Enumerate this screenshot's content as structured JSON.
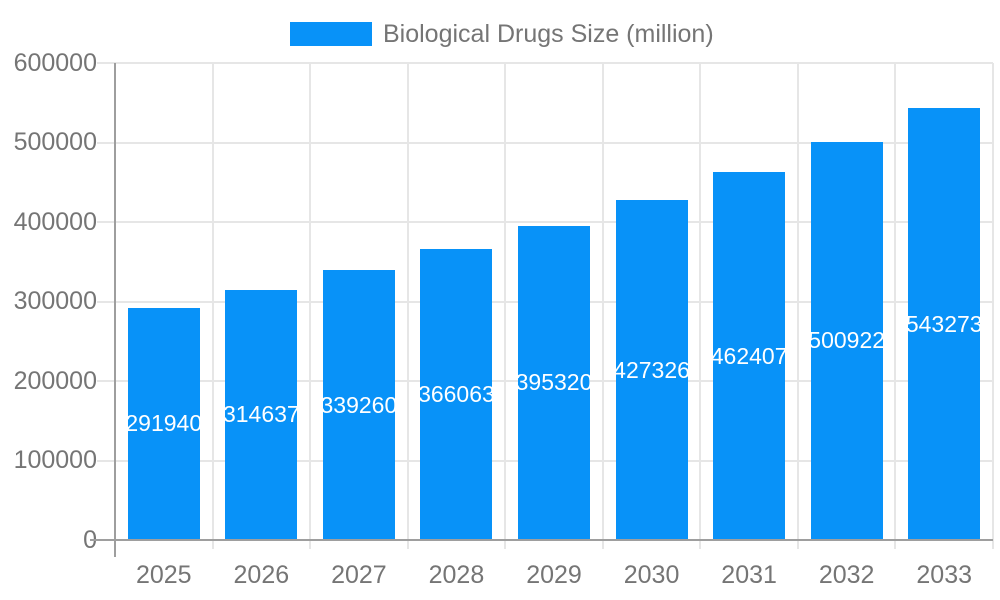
{
  "chart_data": {
    "type": "bar",
    "title": "",
    "legend": "Biological Drugs Size (million)",
    "legend_position": "top-center",
    "categories": [
      "2025",
      "2026",
      "2027",
      "2028",
      "2029",
      "2030",
      "2031",
      "2032",
      "2033"
    ],
    "values": [
      291940,
      314637,
      339260,
      366063,
      395320,
      427326,
      462407,
      500922,
      543273
    ],
    "series": [
      {
        "name": "Biological Drugs Size (million)",
        "values": [
          291940,
          314637,
          339260,
          366063,
          395320,
          427326,
          462407,
          500922,
          543273
        ]
      }
    ],
    "xlabel": "",
    "ylabel": "",
    "ylim": [
      0,
      600000
    ],
    "ytick_interval": 100000,
    "yticks": [
      "0",
      "100000",
      "200000",
      "300000",
      "400000",
      "500000",
      "600000"
    ],
    "grid": true,
    "data_labels_visible": true,
    "colors": {
      "bar": "#0892f8",
      "grid": "#e6e6e6",
      "axis": "#9e9e9e",
      "text": "#757575",
      "data_label": "#ffffff",
      "background": "#ffffff"
    }
  }
}
